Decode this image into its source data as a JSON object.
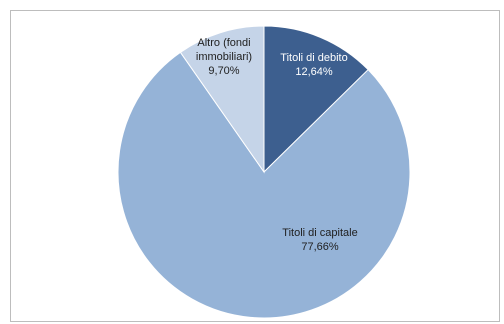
{
  "chart_data": {
    "type": "pie",
    "title": "",
    "legend": "none",
    "start_angle_deg": 0,
    "direction": "clockwise",
    "slices": [
      {
        "label_lines": [
          "Titoli di debito",
          "12,64%"
        ],
        "value": 12.64,
        "color": "#3d5f8f",
        "label_color": "#ffffff"
      },
      {
        "label_lines": [
          "Titoli di capitale",
          "77,66%"
        ],
        "value": 77.66,
        "color": "#95b3d7",
        "label_color": "#1f1f1f"
      },
      {
        "label_lines": [
          "Altro (fondi",
          "immobiliari)",
          "9,70%"
        ],
        "value": 9.7,
        "color": "#c5d4e8",
        "label_color": "#1f1f1f"
      }
    ]
  }
}
